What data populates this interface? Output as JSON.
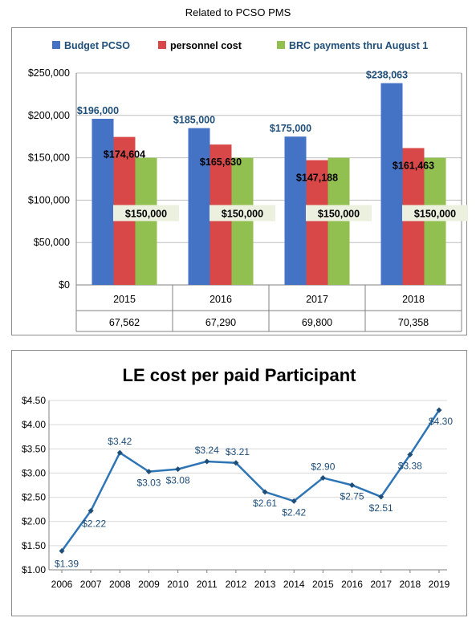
{
  "page_title": "Related to PCSO PMS",
  "chart_data": [
    {
      "type": "bar",
      "title": "",
      "xlabel": "",
      "ylabel": "",
      "ylim": [
        0,
        250000
      ],
      "yticks": [
        "$0",
        "$50,000",
        "$100,000",
        "$150,000",
        "$200,000",
        "$250,000"
      ],
      "ytick_values": [
        0,
        50000,
        100000,
        150000,
        200000,
        250000
      ],
      "grid": true,
      "legend_position": "top",
      "categories": [
        "2015",
        "2016",
        "2017",
        "2018"
      ],
      "category_sublabels": [
        "67,562",
        "67,290",
        "69,800",
        "70,358"
      ],
      "series": [
        {
          "name": "Budget PCSO",
          "color": "#4472c4",
          "values": [
            196000,
            185000,
            175000,
            238063
          ],
          "labels": [
            "$196,000",
            "$185,000",
            "$175,000",
            "$238,063"
          ]
        },
        {
          "name": "personnel cost",
          "color": "#d94848",
          "values": [
            174604,
            165630,
            147188,
            161463
          ],
          "labels": [
            "$174,604",
            "$165,630",
            "$147,188",
            "$161,463"
          ]
        },
        {
          "name": "BRC payments thru August 1",
          "color": "#92c050",
          "values": [
            150000,
            150000,
            150000,
            150000
          ],
          "labels": [
            "$150,000",
            "$150,000",
            "$150,000",
            "$150,000"
          ]
        }
      ]
    },
    {
      "type": "line",
      "title": "LE cost per paid Participant",
      "xlabel": "",
      "ylabel": "",
      "ylim": [
        1.0,
        4.5
      ],
      "yticks": [
        "$1.00",
        "$1.50",
        "$2.00",
        "$2.50",
        "$3.00",
        "$3.50",
        "$4.00",
        "$4.50"
      ],
      "ytick_values": [
        1.0,
        1.5,
        2.0,
        2.5,
        3.0,
        3.5,
        4.0,
        4.5
      ],
      "grid": true,
      "x": [
        "2006",
        "2007",
        "2008",
        "2009",
        "2010",
        "2011",
        "2012",
        "2013",
        "2014",
        "2015",
        "2016",
        "2017",
        "2018",
        "2019"
      ],
      "series": [
        {
          "name": "",
          "color": "#2e75b6",
          "values": [
            1.39,
            2.22,
            3.42,
            3.03,
            3.08,
            3.24,
            3.21,
            2.61,
            2.42,
            2.9,
            2.75,
            2.51,
            3.38,
            4.3
          ],
          "labels": [
            "$1.39",
            "$2.22",
            "$3.42",
            "$3.03",
            "$3.08",
            "$3.24",
            "$3.21",
            "$2.61",
            "$2.42",
            "$2.90",
            "$2.75",
            "$2.51",
            "$3.38",
            "$4.30"
          ]
        }
      ]
    }
  ]
}
